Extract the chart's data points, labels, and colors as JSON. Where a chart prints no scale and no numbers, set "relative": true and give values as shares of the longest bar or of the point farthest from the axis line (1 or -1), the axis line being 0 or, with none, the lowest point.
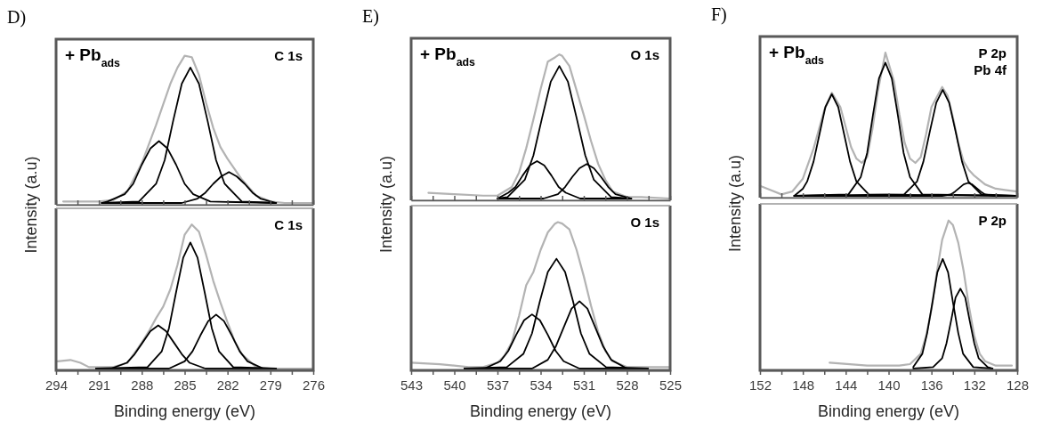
{
  "chart_data": [
    {
      "type": "line",
      "relative": true,
      "title": "D)",
      "ylabel": "Intensity (a.u)",
      "annotations": [
        "+ Pb$_{ads}$",
        "C 1s"
      ],
      "xlim": [
        294,
        276
      ],
      "xticks": [
        294,
        {
          "value": 292.5,
          "label": null
        },
        291,
        {
          "value": 289.5,
          "label": null
        },
        288,
        {
          "value": 286.5,
          "label": null
        },
        285,
        {
          "value": 283.5,
          "label": null
        },
        282,
        {
          "value": 280.5,
          "label": null
        },
        279,
        {
          "value": 277.5,
          "label": null
        },
        276
      ],
      "tick_labels": false,
      "series": [
        {
          "color": "#b3b3b3",
          "x": [
            293.5,
            291,
            290,
            289,
            288,
            287,
            286.5,
            286,
            285.5,
            285,
            284.5,
            284,
            283.5,
            283,
            282.5,
            282,
            281,
            280,
            279,
            278,
            276.1
          ],
          "values": [
            0.01,
            0.01,
            0.02,
            0.08,
            0.27,
            0.53,
            0.67,
            0.81,
            0.92,
            1.0,
            0.99,
            0.87,
            0.68,
            0.51,
            0.38,
            0.3,
            0.16,
            0.05,
            0.01,
            0,
            0
          ]
        },
        {
          "color": "#000000",
          "x": [
            290.8,
            288.2,
            287.0,
            286.4,
            285.8,
            285.2,
            284.6,
            284.0,
            283.4,
            282.8,
            282.2,
            281.0,
            278.6
          ],
          "values": [
            0,
            0.01,
            0.13,
            0.29,
            0.56,
            0.81,
            0.92,
            0.81,
            0.56,
            0.29,
            0.13,
            0.01,
            0
          ]
        },
        {
          "color": "#000000",
          "x": [
            290.8,
            290.4,
            289.2,
            288.6,
            288.0,
            287.4,
            286.8,
            286.2,
            285.6,
            285.0,
            284.4,
            283.2,
            278.6
          ],
          "values": [
            0,
            0.01,
            0.06,
            0.13,
            0.26,
            0.37,
            0.42,
            0.37,
            0.26,
            0.13,
            0.06,
            0.01,
            0
          ]
        },
        {
          "color": "#000000",
          "x": [
            290.8,
            285.2,
            284.1,
            283.55,
            283.0,
            282.45,
            281.9,
            281.35,
            280.8,
            280.25,
            279.7,
            278.6
          ],
          "values": [
            0,
            0,
            0.03,
            0.07,
            0.13,
            0.18,
            0.21,
            0.18,
            0.13,
            0.07,
            0.03,
            0
          ]
        }
      ]
    },
    {
      "type": "line",
      "relative": true,
      "xlabel": "Binding energy (eV)",
      "annotations": [
        "C 1s"
      ],
      "xlim": [
        294,
        276
      ],
      "xticks": [
        294,
        {
          "value": 292.5,
          "label": null
        },
        291,
        {
          "value": 289.5,
          "label": null
        },
        288,
        {
          "value": 286.5,
          "label": null
        },
        285,
        {
          "value": 283.5,
          "label": null
        },
        282,
        {
          "value": 280.5,
          "label": null
        },
        279,
        {
          "value": 277.5,
          "label": null
        },
        276
      ],
      "series": [
        {
          "color": "#b3b3b3",
          "x": [
            293.9,
            293,
            292.3,
            291.7,
            291,
            290,
            289,
            288,
            287.5,
            287,
            286.5,
            286,
            285.5,
            285,
            284.5,
            284,
            283.5,
            283,
            282.5,
            282,
            281.5,
            281,
            280,
            279,
            276.1
          ],
          "values": [
            0.05,
            0.06,
            0.04,
            0.01,
            0.01,
            0.01,
            0.04,
            0.18,
            0.26,
            0.35,
            0.43,
            0.55,
            0.72,
            0.93,
            1.0,
            0.95,
            0.79,
            0.61,
            0.46,
            0.32,
            0.19,
            0.1,
            0.01,
            0,
            0
          ]
        },
        {
          "color": "#000000",
          "x": [
            291.2,
            287.6,
            286.6,
            286.1,
            285.6,
            285.1,
            284.6,
            284.1,
            283.6,
            283.1,
            282.6,
            281.6,
            278.6
          ],
          "values": [
            0,
            0.01,
            0.12,
            0.28,
            0.53,
            0.77,
            0.875,
            0.77,
            0.53,
            0.28,
            0.12,
            0.01,
            0
          ]
        },
        {
          "color": "#000000",
          "x": [
            291.2,
            290.15,
            289.05,
            288.5,
            287.95,
            287.4,
            286.85,
            286.3,
            285.75,
            285.2,
            284.65,
            283.55,
            278.6
          ],
          "values": [
            0,
            0,
            0.04,
            0.1,
            0.18,
            0.26,
            0.3,
            0.26,
            0.18,
            0.1,
            0.04,
            0,
            0
          ]
        },
        {
          "color": "#000000",
          "x": [
            291.2,
            286.1,
            285.0,
            284.45,
            283.9,
            283.35,
            282.8,
            282.25,
            281.7,
            281.15,
            280.6,
            279.5,
            278.6
          ],
          "values": [
            0,
            0,
            0.05,
            0.12,
            0.23,
            0.33,
            0.375,
            0.33,
            0.23,
            0.12,
            0.05,
            0,
            0
          ]
        }
      ]
    },
    {
      "type": "line",
      "relative": true,
      "title": "E)",
      "ylabel": "Intensity (a.u)",
      "annotations": [
        "+ Pb$_{ads}$",
        "O 1s"
      ],
      "xlim": [
        543,
        525
      ],
      "xticks": [
        543,
        {
          "value": 541.5,
          "label": null
        },
        540,
        {
          "value": 538.5,
          "label": null
        },
        537,
        {
          "value": 535.5,
          "label": null
        },
        534,
        {
          "value": 532.5,
          "label": null
        },
        531,
        {
          "value": 529.5,
          "label": null
        },
        528,
        {
          "value": 526.5,
          "label": null
        },
        525
      ],
      "tick_labels": false,
      "series": [
        {
          "color": "#b3b3b3",
          "x": [
            541.8,
            540,
            538,
            537,
            536,
            535.5,
            535,
            534.5,
            534,
            533.5,
            533,
            532.7,
            532.5,
            532,
            531.5,
            531,
            530.5,
            530,
            529.5,
            529,
            528,
            527,
            525
          ],
          "values": [
            0.04,
            0.03,
            0.02,
            0.02,
            0.08,
            0.18,
            0.35,
            0.55,
            0.76,
            0.95,
            0.98,
            1.0,
            0.99,
            0.92,
            0.75,
            0.58,
            0.4,
            0.24,
            0.13,
            0.05,
            0.01,
            0.01,
            0
          ]
        },
        {
          "color": "#000000",
          "x": [
            537.0,
            536.3,
            535.1,
            534.5,
            533.9,
            533.3,
            532.7,
            532.1,
            531.5,
            530.9,
            530.3,
            529.1,
            527.7
          ],
          "values": [
            0,
            0.01,
            0.13,
            0.3,
            0.56,
            0.81,
            0.92,
            0.81,
            0.56,
            0.3,
            0.13,
            0.01,
            0
          ]
        },
        {
          "color": "#000000",
          "x": [
            537.0,
            536.25,
            535.75,
            535.25,
            534.75,
            534.25,
            533.75,
            533.25,
            532.75,
            532.25,
            531.25,
            527.7
          ],
          "values": [
            0,
            0.04,
            0.08,
            0.16,
            0.23,
            0.26,
            0.23,
            0.16,
            0.08,
            0.04,
            0,
            0
          ]
        },
        {
          "color": "#000000",
          "x": [
            537.0,
            533.8,
            532.8,
            532.3,
            531.8,
            531.3,
            530.8,
            530.3,
            529.8,
            529.3,
            528.8,
            527.7
          ],
          "values": [
            0,
            0,
            0.03,
            0.08,
            0.15,
            0.21,
            0.24,
            0.21,
            0.15,
            0.08,
            0.03,
            0
          ]
        }
      ]
    },
    {
      "type": "line",
      "relative": true,
      "xlabel": "Binding energy (eV)",
      "annotations": [
        "O 1s"
      ],
      "xlim": [
        543,
        525
      ],
      "xticks": [
        543,
        {
          "value": 541.5,
          "label": null
        },
        540,
        {
          "value": 538.5,
          "label": null
        },
        537,
        {
          "value": 535.5,
          "label": null
        },
        534,
        {
          "value": 532.5,
          "label": null
        },
        531,
        {
          "value": 529.5,
          "label": null
        },
        528,
        {
          "value": 526.5,
          "label": null
        },
        525
      ],
      "series": [
        {
          "color": "#b3b3b3",
          "x": [
            543,
            541,
            539,
            538,
            537,
            536.5,
            536,
            535.5,
            535,
            534.5,
            534,
            533.5,
            533,
            532.8,
            532.5,
            532,
            531.5,
            531,
            530.5,
            530,
            529.5,
            529,
            528,
            526,
            525
          ],
          "values": [
            0.04,
            0.03,
            0.01,
            0.01,
            0.04,
            0.09,
            0.18,
            0.36,
            0.57,
            0.66,
            0.81,
            0.93,
            0.99,
            1.0,
            0.99,
            0.95,
            0.81,
            0.63,
            0.43,
            0.25,
            0.12,
            0.05,
            0.01,
            0.01,
            0.01
          ]
        },
        {
          "color": "#000000",
          "x": [
            539.3,
            536.35,
            535.2,
            534.6,
            534.05,
            533.5,
            532.9,
            532.3,
            531.75,
            531.2,
            530.6,
            529.45,
            526.55
          ],
          "values": [
            0,
            0.01,
            0.1,
            0.24,
            0.46,
            0.66,
            0.75,
            0.66,
            0.46,
            0.24,
            0.1,
            0.01,
            0
          ]
        },
        {
          "color": "#000000",
          "x": [
            539.3,
            537.9,
            536.8,
            536.25,
            535.7,
            535.15,
            534.6,
            534.05,
            533.5,
            532.95,
            532.4,
            531.3,
            526.55
          ],
          "values": [
            0,
            0,
            0.05,
            0.12,
            0.23,
            0.33,
            0.37,
            0.33,
            0.23,
            0.12,
            0.05,
            0,
            0
          ]
        },
        {
          "color": "#000000",
          "x": [
            539.3,
            534.6,
            533.5,
            532.95,
            532.4,
            531.85,
            531.3,
            530.75,
            530.2,
            529.65,
            529.1,
            528.0,
            526.55
          ],
          "values": [
            0,
            0,
            0.06,
            0.15,
            0.28,
            0.41,
            0.46,
            0.41,
            0.28,
            0.15,
            0.06,
            0,
            0
          ]
        }
      ]
    },
    {
      "type": "line",
      "relative": true,
      "title": "F)",
      "ylabel": "Intensity (a.u)",
      "annotations": [
        "+ Pb$_{ads}$",
        "P 2p\nPb 4f"
      ],
      "xlim": [
        152,
        128
      ],
      "xticks": [
        152,
        {
          "value": 150,
          "label": null
        },
        148,
        {
          "value": 146,
          "label": null
        },
        144,
        {
          "value": 142,
          "label": null
        },
        140,
        {
          "value": 138,
          "label": null
        },
        136,
        {
          "value": 134,
          "label": null
        },
        132,
        {
          "value": 130,
          "label": null
        },
        128
      ],
      "tick_labels": false,
      "series": [
        {
          "color": "#b3b3b3",
          "x": [
            152,
            151,
            150,
            149,
            148,
            147,
            146,
            145.3,
            144.5,
            144,
            143.5,
            143,
            142.5,
            142,
            141.5,
            141,
            140.3,
            139.5,
            139,
            138.5,
            138,
            137.5,
            137,
            136.5,
            136,
            135,
            134.5,
            134,
            133.5,
            133,
            132.5,
            132,
            131,
            130,
            129,
            128
          ],
          "values": [
            0.07,
            0.04,
            0.01,
            0.03,
            0.12,
            0.33,
            0.6,
            0.72,
            0.62,
            0.48,
            0.34,
            0.26,
            0.23,
            0.27,
            0.47,
            0.73,
            1.0,
            0.8,
            0.57,
            0.37,
            0.26,
            0.23,
            0.27,
            0.43,
            0.62,
            0.76,
            0.7,
            0.55,
            0.37,
            0.24,
            0.18,
            0.14,
            0.08,
            0.05,
            0.04,
            0.03
          ]
        },
        {
          "color": "#000000",
          "x": [
            148.8,
            148.0,
            147.6,
            147.0,
            146.45,
            145.9,
            145.3,
            144.7,
            144.15,
            143.6,
            143.0,
            141.85,
            128.1
          ],
          "values": [
            0,
            0.05,
            0.1,
            0.24,
            0.43,
            0.62,
            0.71,
            0.62,
            0.43,
            0.24,
            0.1,
            0.01,
            0
          ]
        },
        {
          "color": "#000000",
          "x": [
            148.8,
            143.75,
            142.6,
            142.0,
            141.45,
            140.9,
            140.3,
            139.7,
            139.15,
            138.6,
            138.0,
            136.85,
            128.1
          ],
          "values": [
            0,
            0.01,
            0.13,
            0.3,
            0.57,
            0.82,
            0.93,
            0.82,
            0.57,
            0.3,
            0.13,
            0.01,
            0
          ]
        },
        {
          "color": "#000000",
          "x": [
            148.8,
            138.55,
            137.35,
            136.75,
            136.15,
            135.55,
            134.95,
            134.35,
            133.75,
            133.15,
            132.55,
            131.35,
            128.1
          ],
          "values": [
            0,
            0.01,
            0.1,
            0.24,
            0.45,
            0.65,
            0.74,
            0.65,
            0.45,
            0.24,
            0.1,
            0.01,
            0
          ]
        },
        {
          "color": "#000000",
          "x": [
            148.8,
            135.0,
            134.2,
            133.8,
            133.4,
            133.0,
            132.6,
            132.2,
            131.8,
            131.4,
            131.0,
            130.2,
            128.1
          ],
          "values": [
            0,
            0,
            0.01,
            0.03,
            0.055,
            0.08,
            0.09,
            0.08,
            0.055,
            0.03,
            0.01,
            0,
            0
          ]
        }
      ]
    },
    {
      "type": "line",
      "relative": true,
      "xlabel": "Binding energy (eV)",
      "annotations": [
        "P 2p"
      ],
      "xlim": [
        152,
        128
      ],
      "xticks": [
        152,
        {
          "value": 150,
          "label": null
        },
        148,
        {
          "value": 146,
          "label": null
        },
        144,
        {
          "value": 142,
          "label": null
        },
        140,
        {
          "value": 138,
          "label": null
        },
        136,
        {
          "value": 134,
          "label": null
        },
        132,
        {
          "value": 130,
          "label": null
        },
        128
      ],
      "series": [
        {
          "color": "#b3b3b3",
          "x": [
            145.5,
            142,
            139,
            138,
            137,
            136.5,
            136,
            135.5,
            135,
            134.4,
            134,
            133.5,
            133,
            132.5,
            132,
            131.5,
            131,
            130,
            128.5
          ],
          "values": [
            0.04,
            0.02,
            0.02,
            0.03,
            0.1,
            0.22,
            0.4,
            0.65,
            0.87,
            1.0,
            0.97,
            0.85,
            0.66,
            0.42,
            0.22,
            0.1,
            0.05,
            0.02,
            0.02
          ]
        },
        {
          "color": "#000000",
          "x": [
            137.7,
            136.85,
            136.4,
            135.9,
            135.45,
            134.95,
            134.45,
            134.0,
            133.5,
            133.05,
            132.1,
            130.3
          ],
          "values": [
            0.01,
            0.1,
            0.24,
            0.45,
            0.65,
            0.74,
            0.65,
            0.45,
            0.24,
            0.1,
            0.01,
            0
          ]
        },
        {
          "color": "#000000",
          "x": [
            137.7,
            135.85,
            135.0,
            134.6,
            134.15,
            133.75,
            133.3,
            132.85,
            132.45,
            132.0,
            131.6,
            130.75,
            130.3
          ],
          "values": [
            0,
            0.01,
            0.07,
            0.17,
            0.33,
            0.48,
            0.54,
            0.48,
            0.33,
            0.17,
            0.07,
            0.01,
            0
          ]
        }
      ]
    }
  ]
}
